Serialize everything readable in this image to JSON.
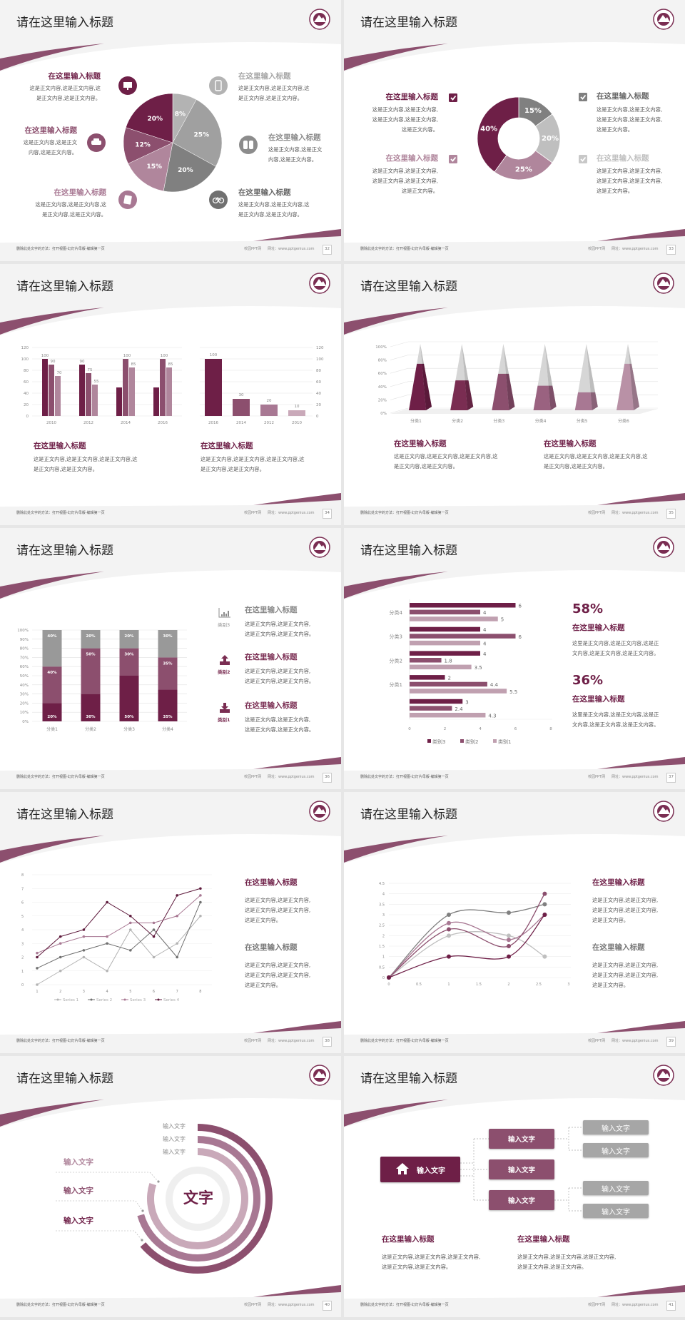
{
  "footer": {
    "left": "删除此处文字的方法：打开视图-幻灯片母版-编辑第一页",
    "brand": "校园PPT网",
    "url": "网址：www.pptgenius.com"
  },
  "colors": {
    "purple_dark": "#6e1f47",
    "purple_mid": "#8c4f6e",
    "purple_light": "#b0869c",
    "purple_pale": "#c9a9b9",
    "grey_dark": "#7f7f7f",
    "grey_mid": "#a0a0a0",
    "grey_light": "#bfbfbf"
  },
  "slides": [
    {
      "page": "32",
      "title": "请在这里输入标题",
      "items": [
        {
          "heading": "在这里输入标题",
          "icon": "monitor-icon",
          "body": [
            "这是正文内容,这是正文内容,这",
            "是正文内容,这是正文内容。"
          ]
        },
        {
          "heading": "在这里输入标题",
          "icon": "car-icon",
          "body": [
            "这是正文内容,这是正文",
            "内容,这是正文内容。"
          ]
        },
        {
          "heading": "在这里输入标题",
          "icon": "book-icon",
          "body": [
            "这是正文内容,这是正文内容,这",
            "是正文内容,这是正文内容。"
          ]
        },
        {
          "heading": "在这里输入标题",
          "icon": "tablet-icon",
          "body": [
            "这是正文内容,这是正文内容,这",
            "是正文内容,这是正文内容。"
          ]
        },
        {
          "heading": "在这里输入标题",
          "icon": "binoculars-icon",
          "body": [
            "这是正文内容,这是正文",
            "内容,这是正文内容。"
          ]
        },
        {
          "heading": "在这里输入标题",
          "icon": "bicycle-icon",
          "body": [
            "这是正文内容,这是正文内容,这",
            "是正文内容,这是正文内容。"
          ]
        }
      ]
    },
    {
      "page": "33",
      "title": "请在这里输入标题",
      "items": [
        {
          "heading": "在这里输入标题",
          "body": [
            "这是正文内容,这是正文内容,",
            "这是正文内容,这是正文内容,",
            "这是正文内容。"
          ]
        },
        {
          "heading": "在这里输入标题",
          "body": [
            "这是正文内容,这是正文内容,",
            "这是正文内容,这是正文内容,",
            "这是正文内容。"
          ]
        },
        {
          "heading": "在这里输入标题",
          "body": [
            "这是正文内容,这是正文内容,",
            "这是正文内容,这是正文内容,",
            "这是正文内容。"
          ]
        },
        {
          "heading": "在这里输入标题",
          "body": [
            "这是正文内容,这是正文内容,",
            "这是正文内容,这是正文内容,",
            "这是正文内容。"
          ]
        }
      ]
    },
    {
      "page": "34",
      "title": "请在这里输入标题",
      "items": [
        {
          "heading": "在这里输入标题",
          "body": [
            "这是正文内容,这是正文内容,这是正文内容,这",
            "是正文内容,这是正文内容。"
          ]
        },
        {
          "heading": "在这里输入标题",
          "body": [
            "这是正文内容,这是正文内容,这是正文内容,这",
            "是正文内容,这是正文内容。"
          ]
        }
      ]
    },
    {
      "page": "35",
      "title": "请在这里输入标题",
      "items": [
        {
          "heading": "在这里输入标题",
          "body": [
            "这是正文内容,这是正文内容,这是正文内容,这",
            "是正文内容,这是正文内容。"
          ]
        },
        {
          "heading": "在这里输入标题",
          "body": [
            "这是正文内容,这是正文内容,这是正文内容,这",
            "是正文内容,这是正文内容。"
          ]
        }
      ]
    },
    {
      "page": "36",
      "title": "请在这里输入标题",
      "items": [
        {
          "heading": "在这里输入标题",
          "label": "类别3",
          "icon": "bar-chart-icon",
          "body": [
            "这是正文内容,这是正文内容,",
            "这是正文内容,这是正文内容。"
          ]
        },
        {
          "heading": "在这里输入标题",
          "label": "类别2",
          "icon": "upload-icon",
          "body": [
            "这是正文内容,这是正文内容,",
            "这是正文内容,这是正文内容。"
          ]
        },
        {
          "heading": "在这里输入标题",
          "label": "类别1",
          "icon": "download-icon",
          "body": [
            "这是正文内容,这是正文内容,",
            "这是正文内容,这是正文内容。"
          ]
        }
      ]
    },
    {
      "page": "37",
      "title": "请在这里输入标题",
      "items": [
        {
          "stat": "58%",
          "heading": "在这里输入标题",
          "body": [
            "这里是正文内容,这是正文内容,这是正",
            "文内容,这是正文内容,这是正文内容。"
          ]
        },
        {
          "stat": "36%",
          "heading": "在这里输入标题",
          "body": [
            "这里是正文内容,这是正文内容,这是正",
            "文内容,这是正文内容,这是正文内容。"
          ]
        }
      ]
    },
    {
      "page": "38",
      "title": "请在这里输入标题",
      "items": [
        {
          "heading": "在这里输入标题",
          "body": [
            "这是正文内容,这是正文内容,",
            "这是正文内容,这是正文内容,",
            "这是正文内容。"
          ]
        },
        {
          "heading": "在这里输入标题",
          "body": [
            "这是正文内容,这是正文内容,",
            "这是正文内容,这是正文内容,",
            "这是正文内容。"
          ]
        }
      ]
    },
    {
      "page": "39",
      "title": "请在这里输入标题",
      "items": [
        {
          "heading": "在这里输入标题",
          "body": [
            "这是正文内容,这是正文内容,",
            "这是正文内容,这是正文内容,",
            "这是正文内容。"
          ]
        },
        {
          "heading": "在这里输入标题",
          "body": [
            "这是正文内容,这是正文内容,",
            "这是正文内容,这是正文内容,",
            "这是正文内容。"
          ]
        }
      ]
    },
    {
      "page": "40",
      "title": "请在这里输入标题",
      "center": "文字",
      "ring_labels": [
        "输入文字",
        "输入文字",
        "输入文字"
      ],
      "left_labels": [
        "输入文字",
        "输入文字",
        "输入文字"
      ]
    },
    {
      "page": "41",
      "title": "请在这里输入标题",
      "root": {
        "label": "输入文字",
        "icon": "home-icon"
      },
      "mid": [
        "输入文字",
        "输入文字",
        "输入文字"
      ],
      "leaves": [
        "输入文字",
        "输入文字",
        "输入文字",
        "输入文字"
      ],
      "items": [
        {
          "heading": "在这里输入标题",
          "body": [
            "这是正文内容,这是正文内容,这是正文内容,",
            "这是正文内容,这是正文内容。"
          ]
        },
        {
          "heading": "在这里输入标题",
          "body": [
            "这是正文内容,这是正文内容,这是正文内容,",
            "这是正文内容,这是正文内容。"
          ]
        }
      ]
    }
  ],
  "chart_data": [
    {
      "type": "pie",
      "values": [
        8,
        25,
        20,
        15,
        12,
        20
      ],
      "unit": "%",
      "colors": [
        "#b3b3b3",
        "#a0a0a0",
        "#808080",
        "#b0869c",
        "#8c4f6e",
        "#6e1f47"
      ]
    },
    {
      "type": "pie",
      "variant": "donut",
      "values": [
        15,
        20,
        25,
        40
      ],
      "unit": "%",
      "colors": [
        "#808080",
        "#bfbfbf",
        "#b0869c",
        "#6e1f47"
      ]
    },
    {
      "type": "bar",
      "categories": [
        "2010",
        "2012",
        "2014",
        "2016"
      ],
      "series": [
        {
          "values": [
            100,
            90,
            50,
            50
          ],
          "labels": [
            100,
            90,
            null,
            null
          ]
        },
        {
          "values": [
            90,
            75,
            100,
            100
          ],
          "labels": [
            90,
            75,
            100,
            100
          ]
        },
        {
          "values": [
            70,
            55,
            85,
            85
          ],
          "labels": [
            70,
            55,
            85,
            85
          ]
        }
      ],
      "ylim": [
        0,
        120
      ],
      "yticks": [
        0,
        20,
        40,
        60,
        80,
        100,
        120
      ],
      "grid": true,
      "colors": [
        "#6e1f47",
        "#8c4f6e",
        "#b0869c"
      ]
    },
    {
      "type": "bar",
      "categories": [
        "2016",
        "2014",
        "2012",
        "2010"
      ],
      "values": [
        100,
        30,
        20,
        10
      ],
      "ylim": [
        0,
        120
      ],
      "yticks": [
        0,
        20,
        40,
        60,
        80,
        100,
        120
      ],
      "yaxis": "right",
      "grid": true,
      "colors": [
        "#6e1f47",
        "#8c4f6e",
        "#a87893",
        "#c9a9b9"
      ]
    },
    {
      "type": "bar",
      "variant": "3d-pyramid",
      "categories": [
        "分类1",
        "分类2",
        "分类3",
        "分类4",
        "分类5",
        "分类6"
      ],
      "values": [
        70,
        45,
        55,
        37,
        27,
        70
      ],
      "ylim": [
        0,
        100
      ],
      "yticks": [
        "0%",
        "20%",
        "40%",
        "60%",
        "80%",
        "100%"
      ],
      "grid": true,
      "colors": [
        "#6e1f47",
        "#7a2d52",
        "#8c4f6e",
        "#9a6280",
        "#a87893",
        "#b991a6"
      ]
    },
    {
      "type": "bar",
      "variant": "stacked-100",
      "categories": [
        "分类1",
        "分类2",
        "分类3",
        "分类4"
      ],
      "series": [
        {
          "values": [
            20,
            30,
            50,
            35
          ]
        },
        {
          "values": [
            40,
            50,
            30,
            35
          ]
        },
        {
          "values": [
            40,
            20,
            20,
            30
          ]
        }
      ],
      "ylim": [
        0,
        100
      ],
      "yticks": [
        "0%",
        "10%",
        "20%",
        "30%",
        "40%",
        "50%",
        "60%",
        "70%",
        "80%",
        "90%",
        "100%"
      ],
      "grid": true,
      "colors": [
        "#6e1f47",
        "#8c4f6e",
        "#999999"
      ]
    },
    {
      "type": "bar",
      "orientation": "horizontal",
      "categories": [
        "分类4",
        "分类3",
        "分类2",
        "分类1",
        ""
      ],
      "series": [
        {
          "name": "类别3",
          "values": [
            6,
            4,
            4,
            2,
            3
          ]
        },
        {
          "name": "类别2",
          "values": [
            4,
            6,
            1.8,
            4.4,
            2.4
          ]
        },
        {
          "name": "类别1",
          "values": [
            5,
            4,
            3.5,
            5.5,
            4.3
          ]
        }
      ],
      "xlim": [
        0,
        8
      ],
      "xticks": [
        0,
        2,
        4,
        6,
        8
      ],
      "legend": "bottom",
      "colors": [
        "#6e1f47",
        "#8c4f6e",
        "#c0a0b0"
      ]
    },
    {
      "type": "line",
      "x": [
        1,
        2,
        3,
        4,
        5,
        6,
        7,
        8
      ],
      "series": [
        {
          "name": "Series 1",
          "values": [
            0,
            1,
            2,
            1,
            4,
            2,
            3,
            5
          ]
        },
        {
          "name": "Series 2",
          "values": [
            1.2,
            2,
            2.5,
            3,
            2.5,
            4,
            2,
            6
          ]
        },
        {
          "name": "Series 3",
          "values": [
            2.3,
            3,
            3.5,
            3.5,
            4.5,
            4.5,
            5,
            6.5
          ]
        },
        {
          "name": "Series 4",
          "values": [
            2,
            3.5,
            4,
            6,
            5,
            3.5,
            6.5,
            7
          ]
        }
      ],
      "ylim": [
        0,
        8
      ],
      "yticks": [
        0,
        1,
        2,
        3,
        4,
        5,
        6,
        7,
        8
      ],
      "grid": true,
      "legend": "bottom",
      "colors": [
        "#b3b3b3",
        "#707070",
        "#a87893",
        "#5e1a3c"
      ]
    },
    {
      "type": "scatter",
      "variant": "smooth-lines",
      "series": [
        {
          "points": [
            [
              0,
              0
            ],
            [
              1,
              3
            ],
            [
              2,
              3.1
            ],
            [
              2.6,
              3.5
            ]
          ]
        },
        {
          "points": [
            [
              0,
              0
            ],
            [
              1,
              2
            ],
            [
              2,
              2
            ],
            [
              2.6,
              1
            ]
          ]
        },
        {
          "points": [
            [
              0,
              0
            ],
            [
              1,
              2.6
            ],
            [
              2,
              1.8
            ],
            [
              2.6,
              3
            ]
          ]
        },
        {
          "points": [
            [
              0,
              0
            ],
            [
              1,
              2.3
            ],
            [
              2,
              1.5
            ],
            [
              2.6,
              4
            ]
          ]
        },
        {
          "points": [
            [
              0,
              0
            ],
            [
              1,
              1
            ],
            [
              2,
              1
            ],
            [
              2.6,
              3
            ]
          ]
        }
      ],
      "xlim": [
        0,
        3
      ],
      "xticks": [
        0,
        0.5,
        1,
        1.5,
        2,
        2.5,
        3
      ],
      "ylim": [
        0,
        4.5
      ],
      "yticks": [
        0,
        0.5,
        1,
        1.5,
        2,
        2.5,
        3,
        3.5,
        4,
        4.5
      ],
      "grid": true,
      "colors": [
        "#808080",
        "#bfbfbf",
        "#a87893",
        "#8c4f6e",
        "#6e1f47"
      ]
    }
  ]
}
